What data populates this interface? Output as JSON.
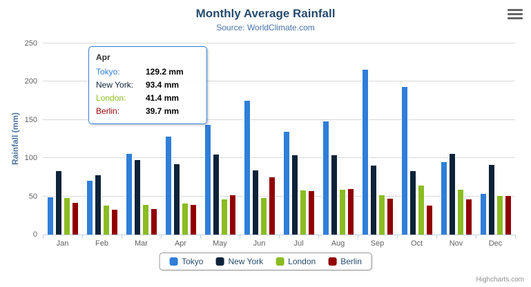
{
  "credits": "Highcharts.com",
  "tooltip": {
    "header": "Apr",
    "border_color": "#2f7ed8",
    "rows": [
      {
        "series": "Tokyo",
        "value": "129.2 mm"
      },
      {
        "series": "New York",
        "value": "93.4 mm"
      },
      {
        "series": "London",
        "value": "41.4 mm"
      },
      {
        "series": "Berlin",
        "value": "39.7 mm"
      }
    ]
  },
  "chart_data": {
    "type": "bar",
    "orientation": "vertical",
    "title": "Monthly Average Rainfall",
    "subtitle": "Source: WorldClimate.com",
    "xlabel": "",
    "ylabel": "Rainfall (mm)",
    "ylim": [
      0,
      250
    ],
    "yticks": [
      0,
      50,
      100,
      150,
      200,
      250
    ],
    "grid": true,
    "legend_position": "bottom",
    "categories": [
      "Jan",
      "Feb",
      "Mar",
      "Apr",
      "May",
      "Jun",
      "Jul",
      "Aug",
      "Sep",
      "Oct",
      "Nov",
      "Dec"
    ],
    "series": [
      {
        "name": "Tokyo",
        "color": "#2f7ed8",
        "values": [
          49.9,
          71.5,
          106.4,
          129.2,
          144.0,
          176.0,
          135.6,
          148.5,
          216.4,
          194.1,
          95.6,
          54.4
        ]
      },
      {
        "name": "New York",
        "color": "#0d233a",
        "values": [
          83.6,
          78.8,
          98.5,
          93.4,
          106.0,
          84.5,
          105.0,
          104.3,
          91.2,
          83.5,
          106.6,
          92.3
        ]
      },
      {
        "name": "London",
        "color": "#8bbc21",
        "values": [
          48.9,
          38.8,
          39.3,
          41.4,
          47.0,
          48.3,
          59.0,
          59.6,
          52.4,
          65.2,
          59.3,
          51.2
        ]
      },
      {
        "name": "Berlin",
        "color": "#910000",
        "values": [
          42.4,
          33.2,
          34.5,
          39.7,
          52.6,
          75.5,
          57.4,
          60.4,
          47.6,
          39.1,
          46.8,
          51.1
        ]
      }
    ],
    "value_suffix": " mm"
  }
}
